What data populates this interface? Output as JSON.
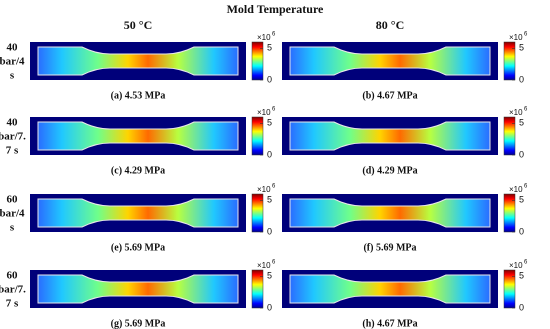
{
  "header": {
    "title": "Mold Temperature"
  },
  "columns": [
    "50 °C",
    "80 °C"
  ],
  "rows": [
    {
      "label_lines": [
        "40",
        "bar/4",
        "s"
      ]
    },
    {
      "label_lines": [
        "40",
        "bar/7.",
        "7 s"
      ]
    },
    {
      "label_lines": [
        "60",
        "bar/4",
        "s"
      ]
    },
    {
      "label_lines": [
        "60",
        "bar/7.",
        "7 s"
      ]
    }
  ],
  "panels": [
    [
      "(a) 4.53 MPa",
      "(b) 4.67 MPa"
    ],
    [
      "(c) 4.29 MPa",
      "(d) 4.29 MPa"
    ],
    [
      "(e) 5.69 MPa",
      "(f) 5.69 MPa"
    ],
    [
      "(g) 5.69 MPa",
      "(h) 4.67 MPa"
    ]
  ],
  "colorbar": {
    "range": [
      0,
      6
    ],
    "ticks": [
      0,
      5
    ],
    "exponent_base": "×10",
    "exponent_power": "6"
  }
}
